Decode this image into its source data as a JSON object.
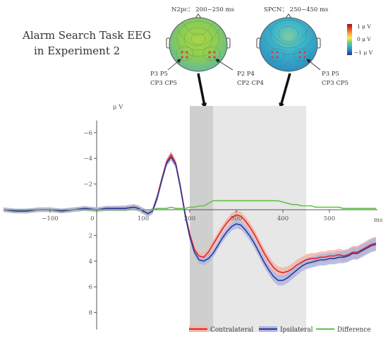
{
  "header": {
    "title_line1": "Alarm Search Task EEG",
    "title_line2": "in Experiment 2"
  },
  "topomaps": [
    {
      "label": "N2pc： 200~250 ms",
      "left_electrodes": [
        "P3 P5",
        "CP3 CP5"
      ],
      "right_electrodes": [
        "P2 P4",
        "CP2 CP4"
      ]
    },
    {
      "label": "SPCN： 250~450 ms",
      "right_electrodes": [
        "P3 P5",
        "CP3 CP5"
      ]
    }
  ],
  "colorbar": {
    "top_label": "1 μ V",
    "mid_label": "0 μ V",
    "bottom_label": "−1 μ V",
    "colors": [
      "#a50f15",
      "#e34a1c",
      "#fdae3b",
      "#fbe94b",
      "#7fce6e",
      "#31b9c9",
      "#2c7fb8",
      "#253494"
    ]
  },
  "chart_data": {
    "type": "line",
    "xlabel": "ms",
    "ylabel": "μ V",
    "xlim": [
      -200,
      600
    ],
    "ylim": [
      -7,
      9
    ],
    "y_inverted": true,
    "xticks": [
      -100,
      0,
      100,
      200,
      300,
      400,
      500
    ],
    "yticks": [
      -6,
      -4,
      -2,
      2,
      4,
      6,
      8
    ],
    "grid": false,
    "legend_position": "bottom-right",
    "shaded_windows": [
      {
        "start": 200,
        "end": 250,
        "shade": "#cfcfcf"
      },
      {
        "start": 250,
        "end": 450,
        "shade": "#e7e7e7"
      }
    ],
    "x": [
      -200,
      -175,
      -150,
      -125,
      -100,
      -75,
      -50,
      -25,
      0,
      20,
      40,
      60,
      80,
      90,
      100,
      110,
      120,
      130,
      140,
      150,
      160,
      170,
      180,
      190,
      200,
      210,
      220,
      230,
      240,
      250,
      260,
      270,
      280,
      290,
      300,
      310,
      320,
      330,
      340,
      350,
      360,
      370,
      380,
      390,
      400,
      410,
      420,
      430,
      440,
      450,
      460,
      470,
      480,
      490,
      500,
      510,
      520,
      530,
      540,
      550,
      560,
      570,
      580,
      590,
      600
    ],
    "series": [
      {
        "name": "Contralateral",
        "color": "#e0262a",
        "band": "#f2b5a8",
        "values": [
          0,
          0.1,
          0.1,
          0,
          0,
          0.1,
          0,
          -0.1,
          0,
          -0.1,
          -0.1,
          -0.1,
          -0.2,
          -0.1,
          0.1,
          0.3,
          0.1,
          -1,
          -2.4,
          -3.7,
          -4.3,
          -3.6,
          -1.8,
          0.3,
          1.9,
          3.1,
          3.6,
          3.7,
          3.3,
          2.7,
          2.1,
          1.5,
          1,
          0.6,
          0.4,
          0.5,
          0.9,
          1.4,
          2,
          2.7,
          3.4,
          4,
          4.5,
          4.8,
          4.9,
          4.8,
          4.6,
          4.3,
          4.1,
          3.9,
          3.8,
          3.8,
          3.7,
          3.7,
          3.6,
          3.6,
          3.5,
          3.6,
          3.5,
          3.3,
          3.3,
          3.1,
          2.9,
          2.7,
          2.6
        ]
      },
      {
        "name": "Ipsilateral",
        "color": "#2b3a9a",
        "band": "#aeb5df",
        "values": [
          0,
          0.1,
          0.1,
          0,
          0,
          0.1,
          0,
          -0.1,
          0,
          -0.1,
          -0.1,
          -0.1,
          -0.2,
          -0.1,
          0.1,
          0.3,
          0.1,
          -0.9,
          -2.3,
          -3.6,
          -4.1,
          -3.5,
          -1.7,
          0.4,
          2.1,
          3.3,
          3.9,
          4,
          3.8,
          3.4,
          2.8,
          2.2,
          1.7,
          1.3,
          1.1,
          1.2,
          1.6,
          2.1,
          2.7,
          3.4,
          4.1,
          4.7,
          5.2,
          5.5,
          5.5,
          5.3,
          5,
          4.7,
          4.4,
          4.2,
          4.1,
          4,
          3.9,
          3.9,
          3.8,
          3.8,
          3.7,
          3.7,
          3.6,
          3.4,
          3.4,
          3.2,
          3,
          2.8,
          2.7
        ]
      },
      {
        "name": "Difference",
        "color": "#63c24a",
        "band": null,
        "values": [
          0,
          0,
          0,
          0,
          0,
          0,
          0,
          0,
          0,
          0,
          0,
          0,
          0,
          0,
          0,
          0,
          0,
          -0.1,
          -0.1,
          -0.1,
          -0.2,
          -0.1,
          -0.1,
          -0.1,
          -0.2,
          -0.2,
          -0.3,
          -0.3,
          -0.5,
          -0.7,
          -0.7,
          -0.7,
          -0.7,
          -0.7,
          -0.7,
          -0.7,
          -0.7,
          -0.7,
          -0.7,
          -0.7,
          -0.7,
          -0.7,
          -0.7,
          -0.7,
          -0.6,
          -0.5,
          -0.4,
          -0.4,
          -0.3,
          -0.3,
          -0.3,
          -0.2,
          -0.2,
          -0.2,
          -0.2,
          -0.2,
          -0.2,
          -0.1,
          -0.1,
          -0.1,
          -0.1,
          -0.1,
          -0.1,
          -0.1,
          -0.1
        ]
      }
    ]
  }
}
